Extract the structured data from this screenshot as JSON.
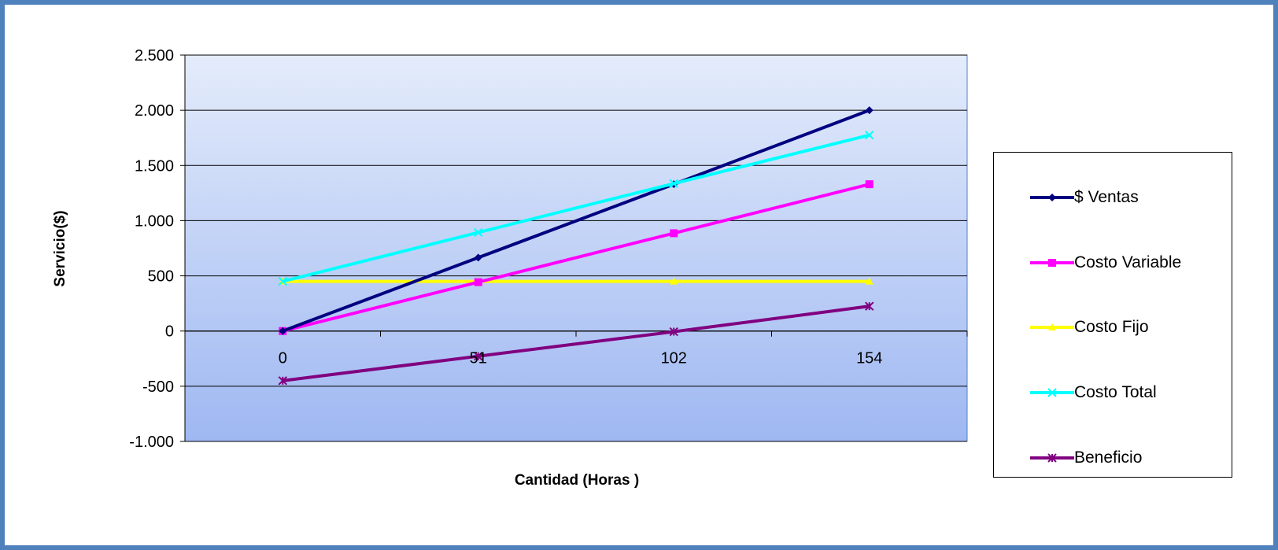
{
  "chart_data": {
    "type": "line",
    "title": "",
    "xlabel": "Cantidad (Horas )",
    "ylabel": "Servicio($)",
    "categories": [
      "0",
      "51",
      "102",
      "154"
    ],
    "ylim": [
      -1000,
      2500
    ],
    "yticks": [
      -1000,
      -500,
      0,
      500,
      1000,
      1500,
      2000,
      2500
    ],
    "ytick_labels": [
      "-1.000",
      "-500",
      "0",
      "500",
      "1.000",
      "1.500",
      "2.000",
      "2.500"
    ],
    "grid": true,
    "legend_position": "right",
    "series": [
      {
        "name": "$ Ventas",
        "color": "#000080",
        "marker": "diamond",
        "values": [
          0,
          665,
          1330,
          2000
        ]
      },
      {
        "name": "Costo Variable",
        "color": "#ff00ff",
        "marker": "square",
        "values": [
          0,
          443,
          886,
          1330
        ]
      },
      {
        "name": "Costo Fijo",
        "color": "#ffff00",
        "marker": "triangle",
        "values": [
          450,
          450,
          450,
          450
        ]
      },
      {
        "name": "Costo Total",
        "color": "#00ffff",
        "marker": "x",
        "values": [
          450,
          893,
          1336,
          1775
        ]
      },
      {
        "name": "Beneficio",
        "color": "#800080",
        "marker": "star",
        "values": [
          -450,
          -228,
          -6,
          225
        ]
      }
    ]
  }
}
